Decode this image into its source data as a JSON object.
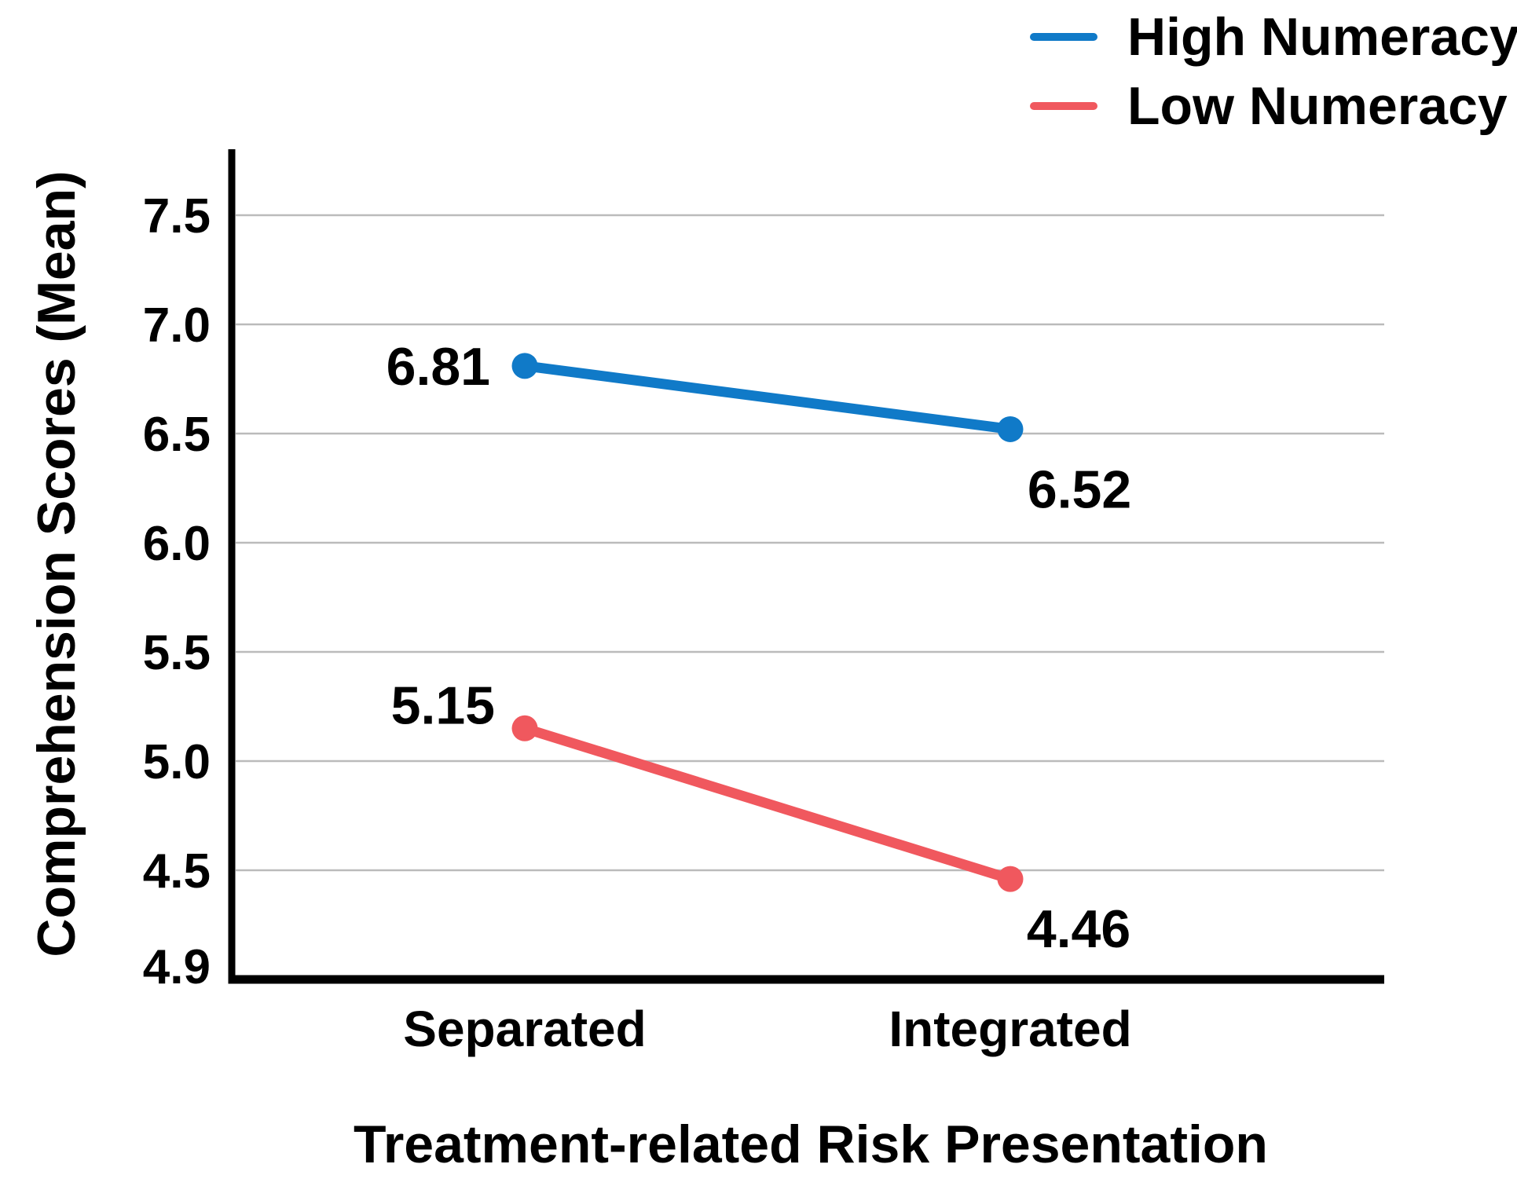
{
  "figure": {
    "background": "#FFFFFF"
  },
  "chart_data": {
    "type": "line",
    "title": "",
    "xlabel": "Treatment-related Risk Presentation",
    "ylabel": "Comprehension Scores (Mean)",
    "categories": [
      "Separated",
      "Integrated"
    ],
    "series": [
      {
        "name": "High Numeracy",
        "color": "#107AC8",
        "values": [
          6.81,
          6.52
        ],
        "point_labels": [
          "6.81",
          "6.52"
        ]
      },
      {
        "name": "Low Numeracy",
        "color": "#F0585E",
        "values": [
          5.15,
          4.46
        ],
        "point_labels": [
          "5.15",
          "4.46"
        ]
      }
    ],
    "y_axis": {
      "tick_values": [
        7.5,
        7.0,
        6.5,
        6.0,
        5.5,
        5.0,
        4.5
      ],
      "tick_labels": [
        "7.5",
        "7.0",
        "6.5",
        "6.0",
        "5.5",
        "5.0",
        "4.5"
      ],
      "bottom_label": "4.9",
      "axis_bottom_value": 4.0,
      "axis_top_value": 7.8
    },
    "grid": true,
    "legend": {
      "position": "top-right",
      "entries": [
        "High Numeracy",
        "Low Numeracy"
      ]
    },
    "colors": {
      "grid": "#BBBBBB",
      "axis": "#000000",
      "text": "#000000",
      "background": "#FFFFFF",
      "high_numeracy": "#107AC8",
      "low_numeracy": "#F0585E"
    }
  }
}
